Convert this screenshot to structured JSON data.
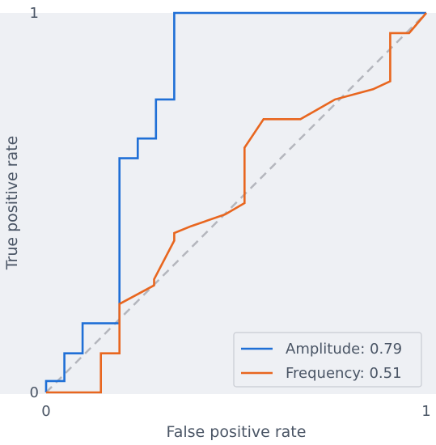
{
  "chart_data": {
    "type": "line",
    "title": "",
    "xlabel": "False positive rate",
    "ylabel": "True positive rate",
    "xlim": [
      0,
      1
    ],
    "ylim": [
      0,
      1
    ],
    "x_ticks": [
      "0",
      "1"
    ],
    "y_ticks": [
      "0",
      "1"
    ],
    "grid": false,
    "legend_position": "bottom-right",
    "background_color": "#eef0f4",
    "diagonal_color": "#b4b6bd",
    "series": [
      {
        "name": "Amplitude: 0.79",
        "color": "#1f6fd6",
        "points": [
          [
            0,
            0
          ],
          [
            0,
            0.03
          ],
          [
            0.048,
            0.03
          ],
          [
            0.048,
            0.103
          ],
          [
            0.096,
            0.103
          ],
          [
            0.096,
            0.182
          ],
          [
            0.193,
            0.182
          ],
          [
            0.193,
            0.617
          ],
          [
            0.241,
            0.617
          ],
          [
            0.241,
            0.669
          ],
          [
            0.289,
            0.669
          ],
          [
            0.289,
            0.772
          ],
          [
            0.337,
            0.772
          ],
          [
            0.337,
            1
          ],
          [
            1,
            1
          ]
        ]
      },
      {
        "name": "Frequency: 0.51",
        "color": "#e8661f",
        "points": [
          [
            0,
            0
          ],
          [
            0.144,
            0
          ],
          [
            0.144,
            0.103
          ],
          [
            0.193,
            0.103
          ],
          [
            0.193,
            0.233
          ],
          [
            0.284,
            0.282
          ],
          [
            0.284,
            0.298
          ],
          [
            0.337,
            0.4
          ],
          [
            0.337,
            0.42
          ],
          [
            0.381,
            0.438
          ],
          [
            0.471,
            0.469
          ],
          [
            0.522,
            0.499
          ],
          [
            0.522,
            0.645
          ],
          [
            0.572,
            0.72
          ],
          [
            0.669,
            0.72
          ],
          [
            0.76,
            0.772
          ],
          [
            0.86,
            0.799
          ],
          [
            0.905,
            0.82
          ],
          [
            0.905,
            0.947
          ],
          [
            0.955,
            0.947
          ],
          [
            1,
            1
          ]
        ]
      }
    ]
  }
}
